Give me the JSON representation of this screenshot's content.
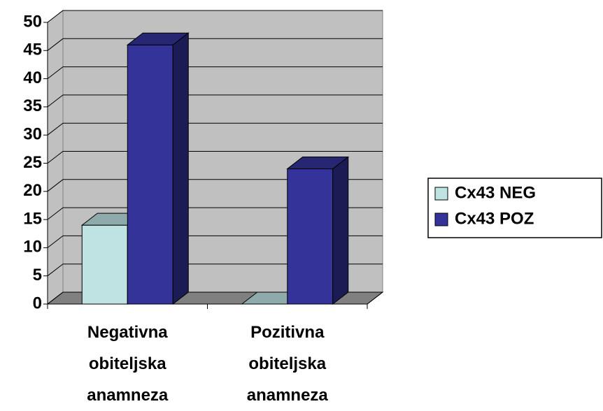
{
  "chart_data": {
    "type": "bar3d",
    "categories": [
      "Negativna obiteljska anamneza",
      "Pozitivna obiteljska anamneza"
    ],
    "series": [
      {
        "name": "Cx43 NEG",
        "color": "#bfe3e3",
        "values": [
          14,
          0
        ]
      },
      {
        "name": "Cx43 POZ",
        "color": "#333399",
        "values": [
          46,
          24
        ]
      }
    ],
    "ylim": [
      0,
      50
    ],
    "yticks": [
      0,
      5,
      10,
      15,
      20,
      25,
      30,
      35,
      40,
      45,
      50
    ],
    "grid": true,
    "legend": "right"
  }
}
